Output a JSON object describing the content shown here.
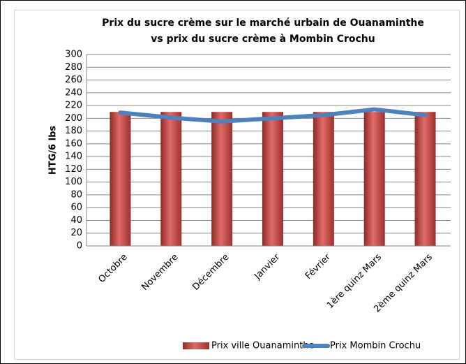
{
  "chart_data": {
    "type": "bar",
    "title": [
      "Prix du sucre crème sur le marché urbain de Ouanaminthe",
      "vs prix du sucre crème à Mombin Crochu"
    ],
    "y_label": "HTG/6 lbs",
    "categories": [
      "Octobre",
      "Novembre",
      "Décembre",
      "Janvier",
      "Février",
      "1ère quinz Mars",
      "2ème quinz Mars"
    ],
    "series": [
      {
        "name": "Prix ville Ouanaminthe",
        "type": "bar",
        "color": "#c0504d",
        "values": [
          210,
          210,
          210,
          210,
          210,
          210,
          210
        ]
      },
      {
        "name": "Prix Mombin Crochu",
        "type": "line",
        "color": "#4f81bd",
        "values": [
          209,
          201,
          195,
          200,
          205,
          214,
          205
        ]
      }
    ],
    "ylim": [
      0,
      300
    ],
    "yticks": [
      0,
      20,
      40,
      60,
      80,
      100,
      120,
      140,
      160,
      180,
      200,
      220,
      240,
      260,
      280,
      300
    ],
    "grid": true,
    "legend": "bottom"
  }
}
